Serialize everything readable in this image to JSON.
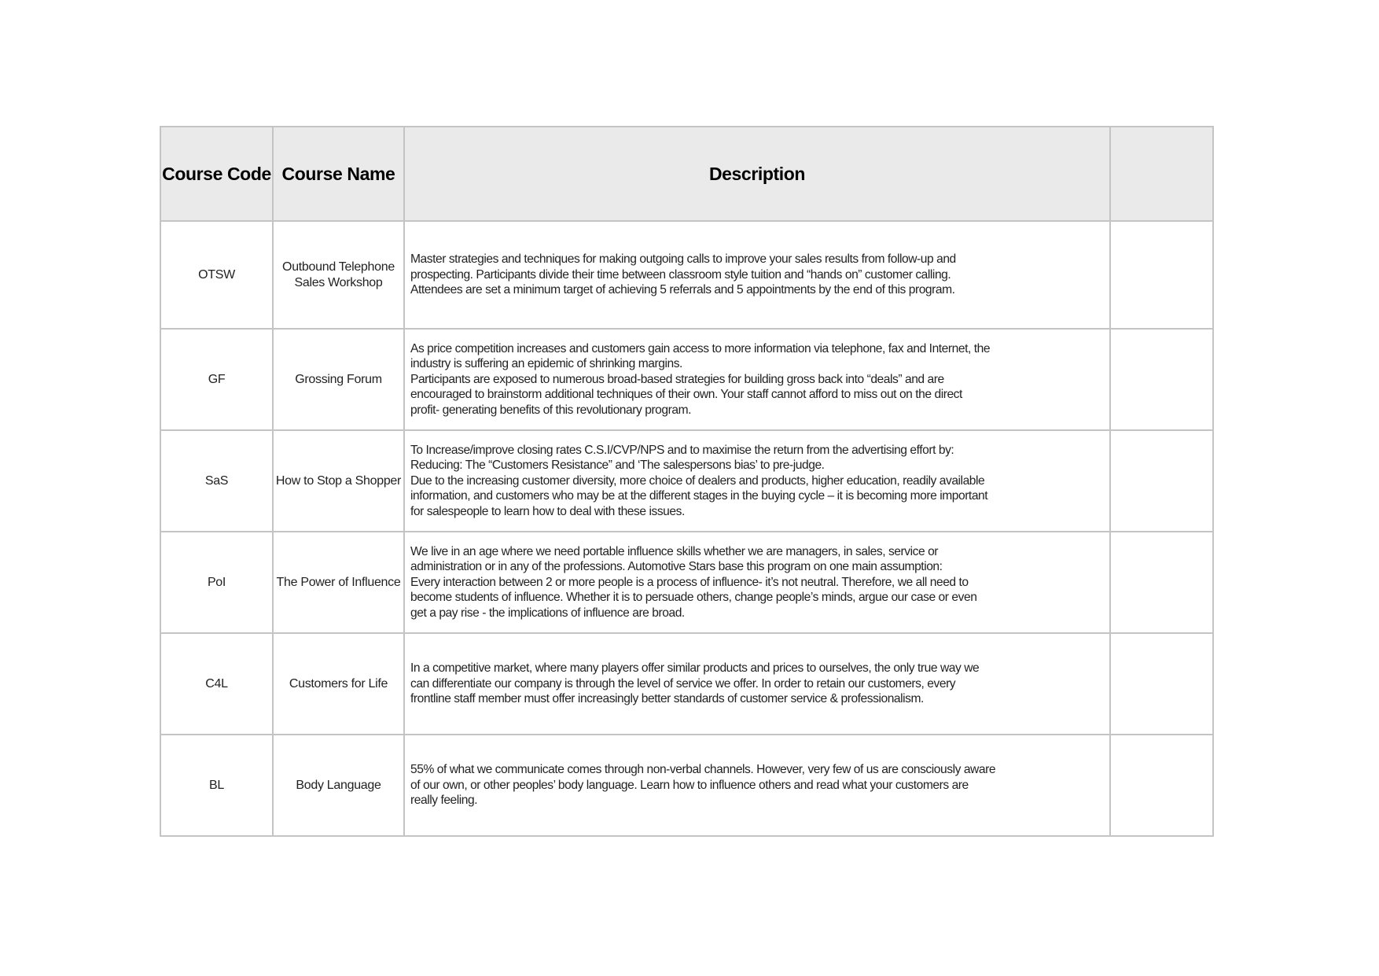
{
  "table": {
    "headers": [
      "Course Code",
      "Course Name",
      "Description",
      ""
    ],
    "rows": [
      {
        "code": "OTSW",
        "name_lines": [
          "Outbound Telephone",
          "Sales Workshop"
        ],
        "description_lines": [
          "Master strategies and techniques for making outgoing calls to improve your sales results from follow-up and",
          "prospecting. Participants divide their time between classroom style tuition and “hands on” customer calling.",
          "Attendees are set a minimum target of achieving 5 referrals and 5 appointments by the end of this program."
        ]
      },
      {
        "code": "GF",
        "name_lines": [
          "Grossing Forum"
        ],
        "description_lines": [
          "As price competition increases and customers gain access to more information via telephone, fax and Internet, the",
          "industry is suffering an epidemic of shrinking margins.",
          "Participants are exposed to numerous broad-based strategies for building gross back into “deals” and are",
          "encouraged to brainstorm additional techniques of their own. Your staff cannot afford to miss out on the direct",
          "profit- generating benefits of this revolutionary program."
        ]
      },
      {
        "code": "SaS",
        "name_lines": [
          "How to Stop a Shopper"
        ],
        "description_lines": [
          "To Increase/improve closing rates C.S.I/CVP/NPS and to maximise the return from the advertising effort by:",
          "Reducing: The “Customers Resistance” and ‘The salespersons bias’ to pre-judge.",
          "Due to the increasing customer diversity, more choice of dealers and products, higher education, readily available",
          "information, and customers who may be at the different stages in the buying cycle – it is becoming more important",
          "for salespeople to learn how to deal with these issues."
        ]
      },
      {
        "code": "PoI",
        "name_lines": [
          "The Power of Influence"
        ],
        "description_lines": [
          "We live in an age where we need portable influence skills whether we are managers, in sales, service or",
          "administration or in any of the professions. Automotive Stars base this program on one main assumption:",
          "Every interaction between 2 or more people is a process of influence- it’s not neutral. Therefore, we all need to",
          "become students of influence. Whether it is to persuade others, change people’s minds, argue our case or even",
          "get a pay rise - the implications of influence are broad."
        ]
      },
      {
        "code": "C4L",
        "name_lines": [
          "Customers for Life"
        ],
        "description_lines": [
          "In a competitive market, where many players offer similar products and prices to ourselves, the only true way we",
          "can differentiate our company is through the level of service we offer. In order to retain our customers, every",
          "frontline staff member must offer increasingly better standards of customer service & professionalism."
        ]
      },
      {
        "code": "BL",
        "name_lines": [
          "Body Language"
        ],
        "description_lines": [
          "55% of what we communicate comes through non-verbal channels. However, very few of us are consciously aware",
          "of our own, or other peoples’ body language. Learn how to influence others and read what your customers are",
          "really feeling."
        ]
      }
    ]
  }
}
